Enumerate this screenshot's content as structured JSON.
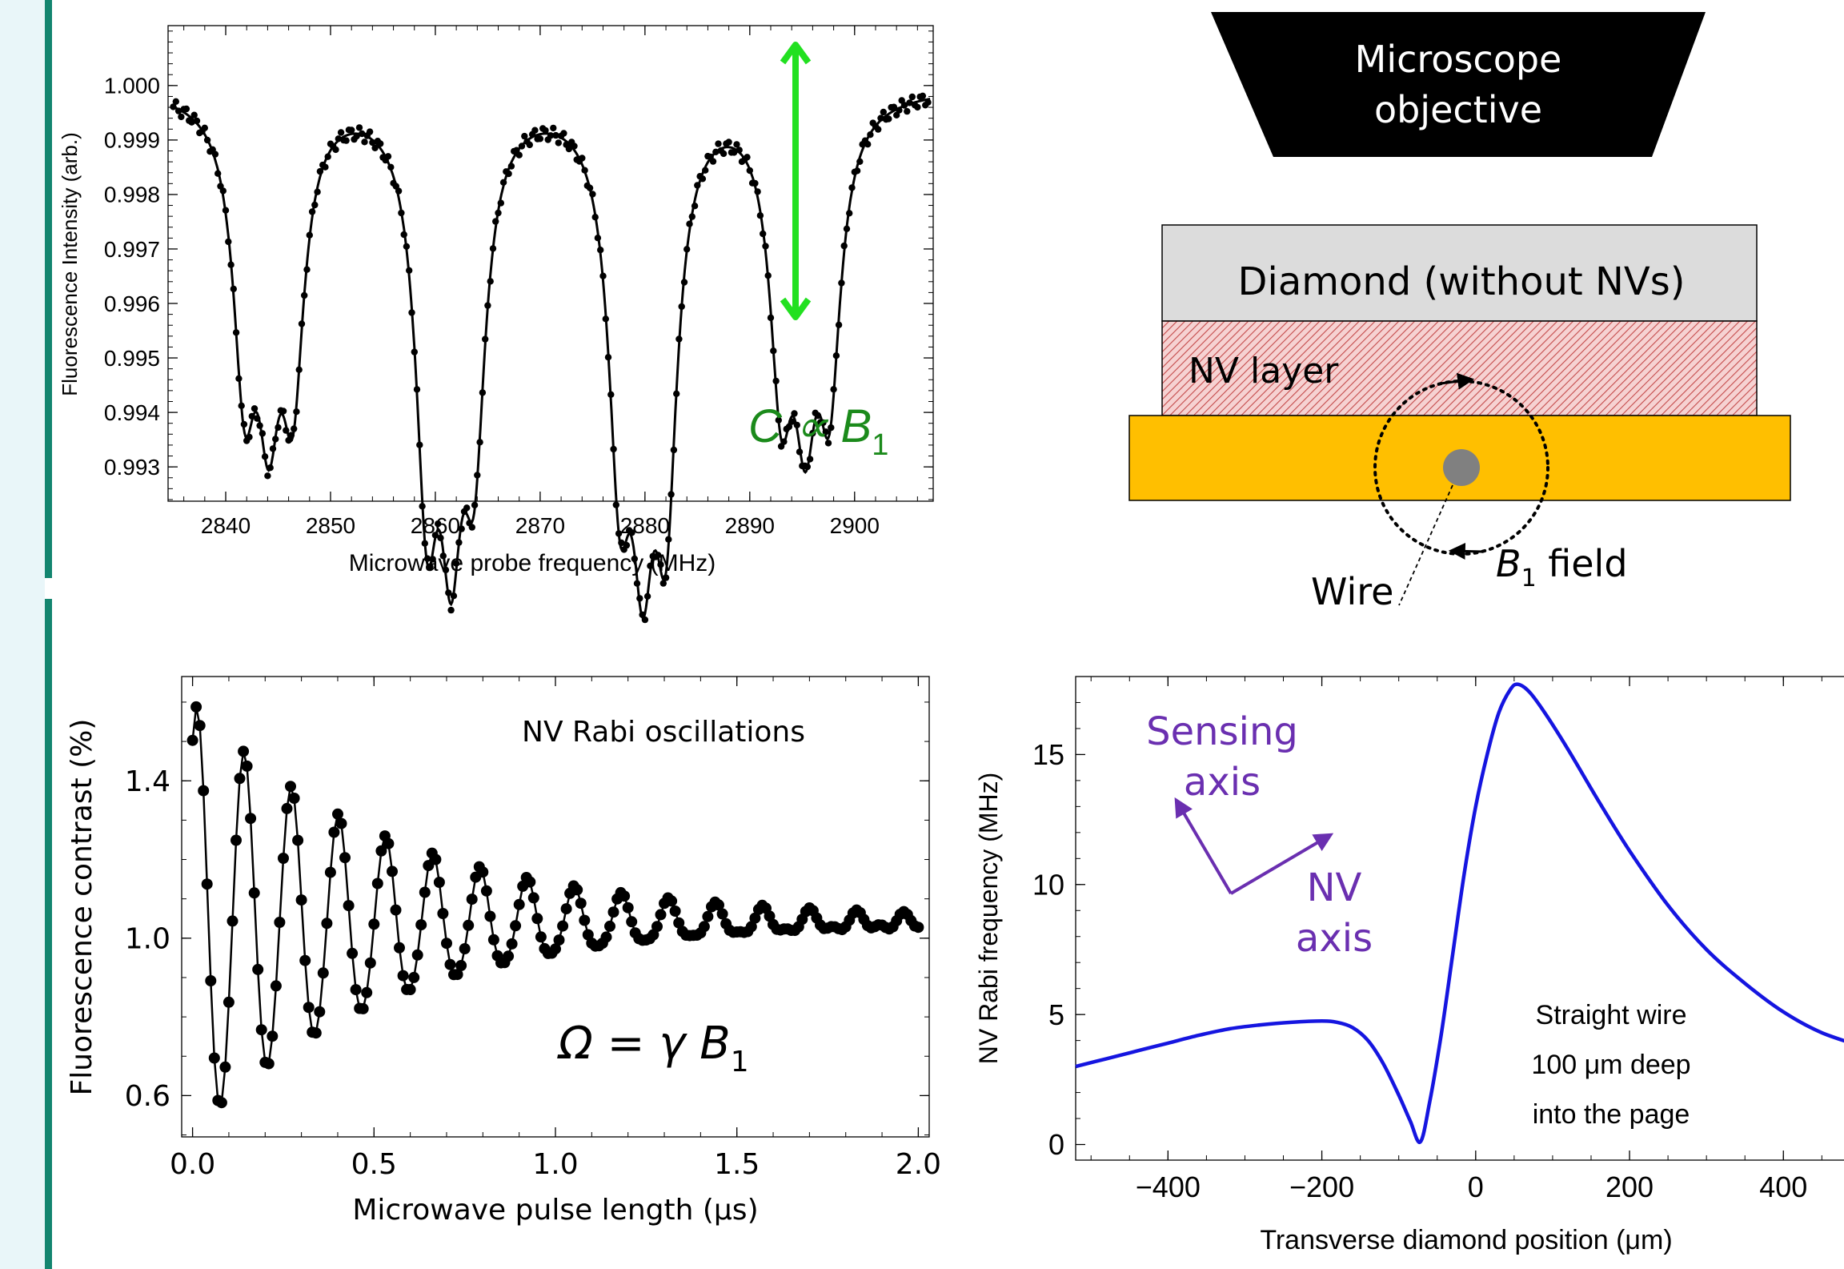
{
  "colors": {
    "sidebar_bg": "#e9f6f9",
    "sidebar_line": "#13856f",
    "green_arrow": "#22e020",
    "green_text": "#1b8a1b",
    "purple": "#6a2fb0",
    "blue_curve": "#1515e0",
    "wire_gold": "#ffbf00",
    "nv_layer": "#f3c9c9",
    "diamond_gray": "#dcdcdc"
  },
  "chart_data": [
    {
      "type": "scatter",
      "name": "odmr",
      "title": "",
      "xlabel": "Microwave probe frequency (MHz)",
      "ylabel": "Fluorescence Intensity (arb.)",
      "xlim": [
        2834.5,
        2907.5
      ],
      "ylim": [
        0.99237,
        1.0011
      ],
      "xticks": [
        2840,
        2850,
        2860,
        2870,
        2880,
        2890,
        2900
      ],
      "yticks": [
        0.993,
        0.994,
        0.995,
        0.996,
        0.997,
        0.998,
        0.999,
        1.0
      ],
      "xtick_labels": [
        "2840",
        "2850",
        "2860",
        "2870",
        "2880",
        "2890",
        "2900"
      ],
      "ytick_labels": [
        "0.993",
        "0.994",
        "0.995",
        "0.996",
        "0.997",
        "0.998",
        "0.999",
        "1.000"
      ],
      "dips": [
        {
          "x": 2841.8,
          "depth": 0.0048
        },
        {
          "x": 2844.1,
          "depth": 0.0046
        },
        {
          "x": 2846.4,
          "depth": 0.0048
        },
        {
          "x": 2859.2,
          "depth": 0.0066
        },
        {
          "x": 2861.5,
          "depth": 0.0063
        },
        {
          "x": 2863.7,
          "depth": 0.0055
        },
        {
          "x": 2877.6,
          "depth": 0.006
        },
        {
          "x": 2879.8,
          "depth": 0.0063
        },
        {
          "x": 2882.0,
          "depth": 0.0066
        },
        {
          "x": 2893.0,
          "depth": 0.0048
        },
        {
          "x": 2895.3,
          "depth": 0.0046
        },
        {
          "x": 2897.6,
          "depth": 0.0048
        }
      ],
      "dip_width_mhz": 1.3,
      "grid": false
    },
    {
      "type": "line",
      "name": "rabi",
      "title": "",
      "xlabel": "Microwave pulse length (μs)",
      "ylabel": "Fluorescence contrast (%)",
      "xlim": [
        -0.03,
        2.03
      ],
      "ylim": [
        0.495,
        1.665
      ],
      "xticks": [
        0.0,
        0.5,
        1.0,
        1.5,
        2.0
      ],
      "yticks": [
        0.6,
        1.0,
        1.4
      ],
      "xtick_labels": [
        "0.0",
        "0.5",
        "1.0",
        "1.5",
        "2.0"
      ],
      "ytick_labels": [
        "0.6",
        "1.0",
        "1.4"
      ],
      "model": {
        "offset": 1.04,
        "amplitude": 0.55,
        "period_us": 0.13,
        "decay_us": 0.55,
        "phase_start": 1.0
      },
      "x_step_us": 0.01,
      "annotation": "NV Rabi oscillations",
      "grid": false
    },
    {
      "type": "line",
      "name": "rabi_vs_position",
      "title": "",
      "xlabel": "Transverse diamond position (μm)",
      "ylabel": "NV Rabi frequency (MHz)",
      "xlim": [
        -520,
        510
      ],
      "ylim": [
        -0.6,
        18.0
      ],
      "xticks": [
        -400,
        -200,
        0,
        200,
        400
      ],
      "yticks": [
        0,
        5,
        10,
        15
      ],
      "xtick_labels": [
        "−400",
        "−200",
        "0",
        "200",
        "400"
      ],
      "ytick_labels": [
        "0",
        "5",
        "10",
        "15"
      ],
      "points": [
        [
          -520,
          3.0
        ],
        [
          -480,
          3.3
        ],
        [
          -440,
          3.6
        ],
        [
          -400,
          3.9
        ],
        [
          -360,
          4.2
        ],
        [
          -320,
          4.45
        ],
        [
          -280,
          4.6
        ],
        [
          -240,
          4.7
        ],
        [
          -200,
          4.75
        ],
        [
          -180,
          4.7
        ],
        [
          -160,
          4.5
        ],
        [
          -140,
          4.0
        ],
        [
          -120,
          3.1
        ],
        [
          -100,
          1.9
        ],
        [
          -85,
          0.9
        ],
        [
          -72,
          0.1
        ],
        [
          -60,
          1.6
        ],
        [
          -45,
          4.2
        ],
        [
          -30,
          7.3
        ],
        [
          -15,
          10.4
        ],
        [
          0,
          13.0
        ],
        [
          15,
          15.0
        ],
        [
          30,
          16.6
        ],
        [
          45,
          17.5
        ],
        [
          55,
          17.7
        ],
        [
          70,
          17.4
        ],
        [
          90,
          16.6
        ],
        [
          120,
          15.2
        ],
        [
          160,
          13.2
        ],
        [
          200,
          11.3
        ],
        [
          250,
          9.2
        ],
        [
          300,
          7.5
        ],
        [
          350,
          6.2
        ],
        [
          400,
          5.1
        ],
        [
          450,
          4.3
        ],
        [
          510,
          3.7
        ]
      ],
      "annotation_lines": [
        "Straight wire",
        "100 μm deep",
        "into the page"
      ],
      "grid": false
    }
  ],
  "odmr_annotation": "C ∝ B",
  "subscript_one": "1",
  "rabi_formula": "Ω = γ B",
  "diagram": {
    "objective_line1": "Microscope",
    "objective_line2": "objective",
    "diamond_label": "Diamond (without NVs)",
    "nv_layer_label": "NV layer",
    "wire_label": "Wire",
    "field_label_prefix": "B",
    "field_label_suffix": " field"
  },
  "sensing": {
    "sensing_line1": "Sensing",
    "sensing_line2": "axis",
    "nv_line1": "NV",
    "nv_line2": "axis"
  }
}
